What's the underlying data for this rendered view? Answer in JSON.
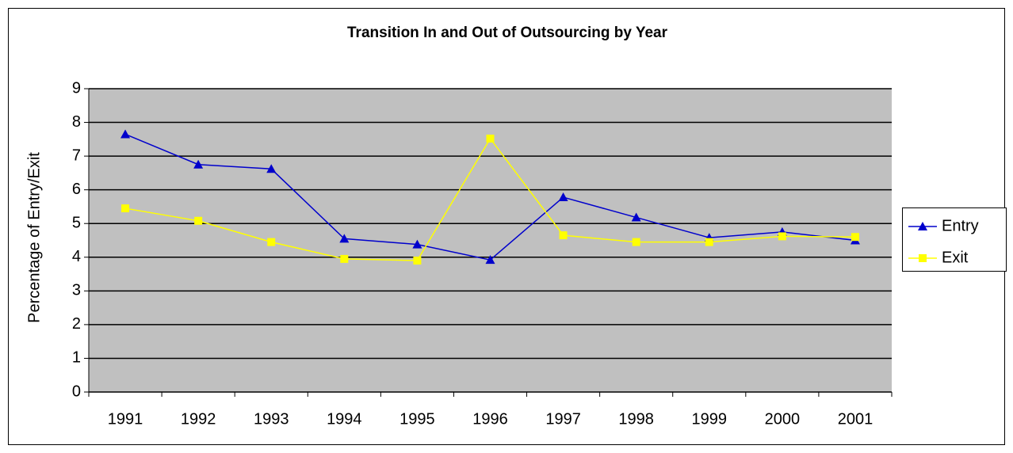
{
  "chart_data": {
    "type": "line",
    "title": "Transition In and Out of Outsourcing by Year",
    "y_label": "Percentage of Entry/Exit",
    "categories": [
      "1991",
      "1992",
      "1993",
      "1994",
      "1995",
      "1996",
      "1997",
      "1998",
      "1999",
      "2000",
      "2001"
    ],
    "series": [
      {
        "name": "Entry",
        "color": "#0000cc",
        "marker": "triangle",
        "values": [
          7.65,
          6.75,
          6.62,
          4.55,
          4.38,
          3.92,
          5.78,
          5.18,
          4.58,
          4.75,
          4.5
        ]
      },
      {
        "name": "Exit",
        "color": "#ffff00",
        "marker": "square",
        "values": [
          5.45,
          5.08,
          4.45,
          3.95,
          3.9,
          7.52,
          4.65,
          4.45,
          4.45,
          4.62,
          4.6
        ]
      }
    ],
    "ylim": [
      0,
      9
    ],
    "yticks": [
      0,
      1,
      2,
      3,
      4,
      5,
      6,
      7,
      8,
      9
    ],
    "grid": true,
    "legend": "right"
  }
}
